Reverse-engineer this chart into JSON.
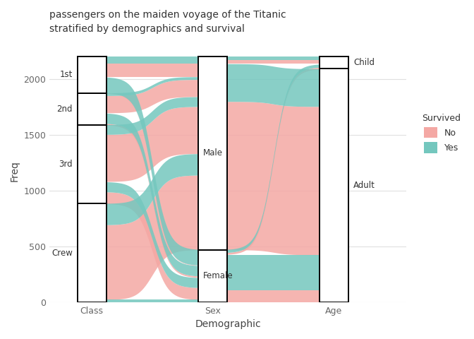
{
  "title": "passengers on the maiden voyage of the Titanic",
  "subtitle": "stratified by demographics and survival",
  "xlabel": "Demographic",
  "ylabel": "Freq",
  "color_no": "#F4A8A4",
  "color_yes": "#74C7BE",
  "bg_color": "#FFFFFF",
  "grid_color": "#E0E0E0",
  "axis_labels": [
    "Class",
    "Sex",
    "Age"
  ],
  "ylim": [
    0,
    2350
  ],
  "yticks": [
    0,
    500,
    1000,
    1500,
    2000
  ],
  "titanic_data": [
    {
      "Class": "1st",
      "Sex": "Male",
      "Age": "Child",
      "Survived": "No",
      "Freq": 0
    },
    {
      "Class": "1st",
      "Sex": "Male",
      "Age": "Child",
      "Survived": "Yes",
      "Freq": 5
    },
    {
      "Class": "1st",
      "Sex": "Male",
      "Age": "Adult",
      "Survived": "No",
      "Freq": 118
    },
    {
      "Class": "1st",
      "Sex": "Male",
      "Age": "Adult",
      "Survived": "Yes",
      "Freq": 57
    },
    {
      "Class": "1st",
      "Sex": "Female",
      "Age": "Child",
      "Survived": "No",
      "Freq": 0
    },
    {
      "Class": "1st",
      "Sex": "Female",
      "Age": "Child",
      "Survived": "Yes",
      "Freq": 1
    },
    {
      "Class": "1st",
      "Sex": "Female",
      "Age": "Adult",
      "Survived": "No",
      "Freq": 4
    },
    {
      "Class": "1st",
      "Sex": "Female",
      "Age": "Adult",
      "Survived": "Yes",
      "Freq": 140
    },
    {
      "Class": "2nd",
      "Sex": "Male",
      "Age": "Child",
      "Survived": "No",
      "Freq": 0
    },
    {
      "Class": "2nd",
      "Sex": "Male",
      "Age": "Child",
      "Survived": "Yes",
      "Freq": 11
    },
    {
      "Class": "2nd",
      "Sex": "Male",
      "Age": "Adult",
      "Survived": "No",
      "Freq": 154
    },
    {
      "Class": "2nd",
      "Sex": "Male",
      "Age": "Adult",
      "Survived": "Yes",
      "Freq": 14
    },
    {
      "Class": "2nd",
      "Sex": "Female",
      "Age": "Child",
      "Survived": "No",
      "Freq": 0
    },
    {
      "Class": "2nd",
      "Sex": "Female",
      "Age": "Child",
      "Survived": "Yes",
      "Freq": 13
    },
    {
      "Class": "2nd",
      "Sex": "Female",
      "Age": "Adult",
      "Survived": "No",
      "Freq": 13
    },
    {
      "Class": "2nd",
      "Sex": "Female",
      "Age": "Adult",
      "Survived": "Yes",
      "Freq": 80
    },
    {
      "Class": "3rd",
      "Sex": "Male",
      "Age": "Child",
      "Survived": "No",
      "Freq": 35
    },
    {
      "Class": "3rd",
      "Sex": "Male",
      "Age": "Child",
      "Survived": "Yes",
      "Freq": 13
    },
    {
      "Class": "3rd",
      "Sex": "Male",
      "Age": "Adult",
      "Survived": "No",
      "Freq": 387
    },
    {
      "Class": "3rd",
      "Sex": "Male",
      "Age": "Adult",
      "Survived": "Yes",
      "Freq": 75
    },
    {
      "Class": "3rd",
      "Sex": "Female",
      "Age": "Child",
      "Survived": "No",
      "Freq": 17
    },
    {
      "Class": "3rd",
      "Sex": "Female",
      "Age": "Child",
      "Survived": "Yes",
      "Freq": 14
    },
    {
      "Class": "3rd",
      "Sex": "Female",
      "Age": "Adult",
      "Survived": "No",
      "Freq": 89
    },
    {
      "Class": "3rd",
      "Sex": "Female",
      "Age": "Adult",
      "Survived": "Yes",
      "Freq": 76
    },
    {
      "Class": "Crew",
      "Sex": "Male",
      "Age": "Child",
      "Survived": "No",
      "Freq": 0
    },
    {
      "Class": "Crew",
      "Sex": "Male",
      "Age": "Child",
      "Survived": "Yes",
      "Freq": 0
    },
    {
      "Class": "Crew",
      "Sex": "Male",
      "Age": "Adult",
      "Survived": "No",
      "Freq": 670
    },
    {
      "Class": "Crew",
      "Sex": "Male",
      "Age": "Adult",
      "Survived": "Yes",
      "Freq": 192
    },
    {
      "Class": "Crew",
      "Sex": "Female",
      "Age": "Child",
      "Survived": "No",
      "Freq": 0
    },
    {
      "Class": "Crew",
      "Sex": "Female",
      "Age": "Child",
      "Survived": "Yes",
      "Freq": 0
    },
    {
      "Class": "Crew",
      "Sex": "Female",
      "Age": "Adult",
      "Survived": "No",
      "Freq": 3
    },
    {
      "Class": "Crew",
      "Sex": "Female",
      "Age": "Adult",
      "Survived": "Yes",
      "Freq": 20
    }
  ]
}
